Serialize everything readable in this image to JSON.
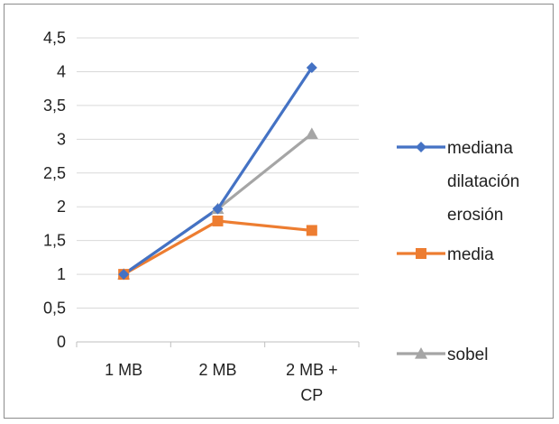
{
  "chart_data": {
    "type": "line",
    "title": "",
    "xlabel": "",
    "ylabel": "",
    "categories": [
      "1 MB",
      "2 MB",
      "2 MB + CP"
    ],
    "category_lines": [
      [
        "1 MB"
      ],
      [
        "2 MB"
      ],
      [
        "2 MB +",
        "CP"
      ]
    ],
    "ylim": [
      0,
      4.5
    ],
    "y_ticks": [
      "0",
      "0,5",
      "1",
      "1,5",
      "2",
      "2,5",
      "3",
      "3,5",
      "4",
      "4,5"
    ],
    "grid": true,
    "legend_position": "right",
    "series": [
      {
        "name": "mediana dilatación erosión",
        "legend_lines": [
          "mediana",
          "dilatación",
          "erosión"
        ],
        "values": [
          1,
          1.97,
          4.06
        ],
        "color": "#4472C4",
        "marker": "diamond"
      },
      {
        "name": "media",
        "legend_lines": [
          "media"
        ],
        "values": [
          1,
          1.79,
          1.65
        ],
        "color": "#ED7D31",
        "marker": "square"
      },
      {
        "name": "sobel",
        "legend_lines": [
          "sobel"
        ],
        "values": [
          1,
          1.97,
          3.08
        ],
        "color": "#A5A5A5",
        "marker": "triangle"
      }
    ]
  }
}
